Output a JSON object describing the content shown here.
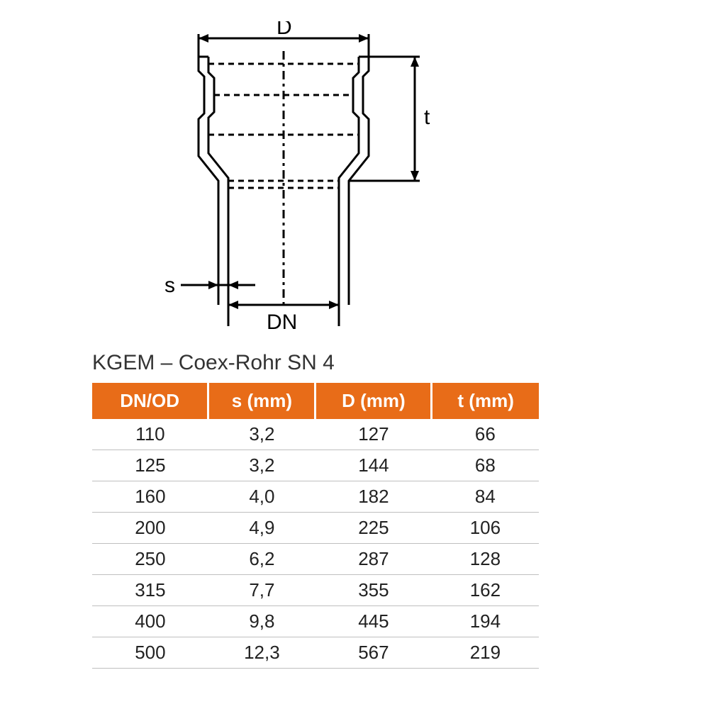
{
  "diagram": {
    "labels": {
      "D": "D",
      "t": "t",
      "s": "s",
      "DN": "DN"
    },
    "stroke": "#000000",
    "stroke_width": 3,
    "dash": "8 6",
    "label_fontsize": 30
  },
  "title": "KGEM – Coex-Rohr SN 4",
  "table": {
    "header_bg": "#e86c18",
    "header_fg": "#ffffff",
    "header_fontsize": 26,
    "cell_fontsize": 26,
    "cell_fg": "#222222",
    "border_color": "#bfbfbf",
    "columns": [
      "DN/OD",
      "s (mm)",
      "D (mm)",
      "t (mm)"
    ],
    "col_widths_pct": [
      26,
      24,
      26,
      24
    ],
    "rows": [
      [
        "110",
        "3,2",
        "127",
        "66"
      ],
      [
        "125",
        "3,2",
        "144",
        "68"
      ],
      [
        "160",
        "4,0",
        "182",
        "84"
      ],
      [
        "200",
        "4,9",
        "225",
        "106"
      ],
      [
        "250",
        "6,2",
        "287",
        "128"
      ],
      [
        "315",
        "7,7",
        "355",
        "162"
      ],
      [
        "400",
        "9,8",
        "445",
        "194"
      ],
      [
        "500",
        "12,3",
        "567",
        "219"
      ]
    ]
  }
}
